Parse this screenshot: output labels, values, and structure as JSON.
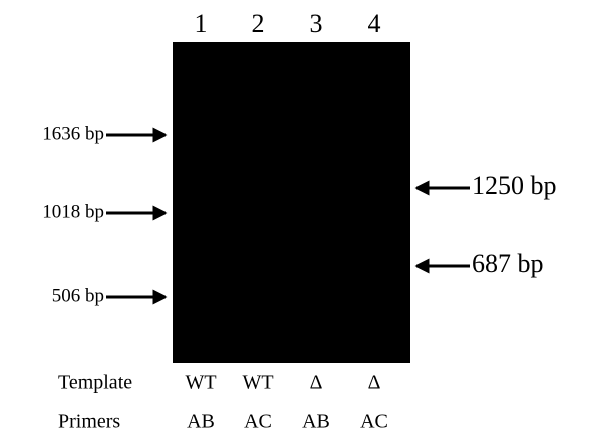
{
  "lanes": [
    "1",
    "2",
    "3",
    "4"
  ],
  "left_markers": [
    "1636 bp",
    "1018 bp",
    "506 bp"
  ],
  "right_markers": [
    "1250 bp",
    "687 bp"
  ],
  "rows": [
    {
      "label": "Template",
      "cells": [
        "WT",
        "WT",
        "Δ",
        "Δ"
      ]
    },
    {
      "label": "Primers",
      "cells": [
        "AB",
        "AC",
        "AB",
        "AC"
      ]
    }
  ]
}
